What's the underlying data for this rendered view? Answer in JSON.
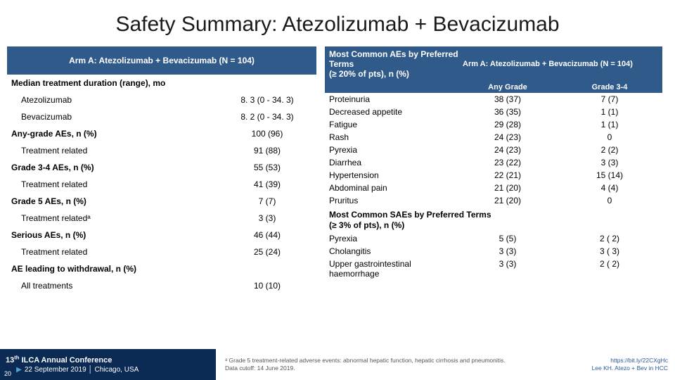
{
  "title": "Safety Summary: Atezolizumab + Bevacizumab",
  "leftTable": {
    "header": "Arm A: Atezolizumab + Bevacizumab  (N = 104)",
    "rows": [
      {
        "label": "Median treatment duration (range), mo",
        "val": "",
        "bold": true,
        "indent": false
      },
      {
        "label": "Atezolizumab",
        "val": "8. 3 (0 - 34. 3)",
        "bold": false,
        "indent": true
      },
      {
        "label": "Bevacizumab",
        "val": "8. 2 (0 - 34. 3)",
        "bold": false,
        "indent": true
      },
      {
        "label": "Any-grade AEs, n (%)",
        "val": "100 (96)",
        "bold": true,
        "indent": false
      },
      {
        "label": "Treatment related",
        "val": "91 (88)",
        "bold": false,
        "indent": true
      },
      {
        "label": "Grade 3-4 AEs, n (%)",
        "val": "55 (53)",
        "bold": true,
        "indent": false
      },
      {
        "label": "Treatment related",
        "val": "41 (39)",
        "bold": false,
        "indent": true
      },
      {
        "label": "Grade 5 AEs, n (%)",
        "val": "7 (7)",
        "bold": true,
        "indent": false
      },
      {
        "label": "Treatment relatedᵃ",
        "val": "3 (3)",
        "bold": false,
        "indent": true
      },
      {
        "label": "Serious AEs, n (%)",
        "val": "46 (44)",
        "bold": true,
        "indent": false
      },
      {
        "label": "Treatment related",
        "val": "25 (24)",
        "bold": false,
        "indent": true
      },
      {
        "label": "AE leading to withdrawal, n (%)",
        "val": "",
        "bold": true,
        "indent": false
      },
      {
        "label": "All treatments",
        "val": "10 (10)",
        "bold": false,
        "indent": true
      }
    ]
  },
  "rightTable": {
    "header1": "Most Common AEs by Preferred Terms\n(≥ 20% of pts), n (%)",
    "header2": "Arm A: Atezolizumab + Bevacizumab  (N = 104)",
    "sub1": "Any Grade",
    "sub2": "Grade 3-4",
    "rows1": [
      {
        "c1": "Proteinuria",
        "c2": "38 (37)",
        "c3": "7 (7)"
      },
      {
        "c1": "Decreased appetite",
        "c2": "36 (35)",
        "c3": "1 (1)"
      },
      {
        "c1": "Fatigue",
        "c2": "29 (28)",
        "c3": "1 (1)"
      },
      {
        "c1": "Rash",
        "c2": "24 (23)",
        "c3": "0"
      },
      {
        "c1": "Pyrexia",
        "c2": "24 (23)",
        "c3": "2 (2)"
      },
      {
        "c1": "Diarrhea",
        "c2": "23 (22)",
        "c3": "3 (3)"
      },
      {
        "c1": "Hypertension",
        "c2": "22 (21)",
        "c3": "15 (14)"
      },
      {
        "c1": "Abdominal pain",
        "c2": "21 (20)",
        "c3": "4 (4)"
      },
      {
        "c1": "Pruritus",
        "c2": "21 (20)",
        "c3": "0"
      }
    ],
    "section2Head": "Most Common SAEs by Preferred Terms\n(≥ 3% of pts), n (%)",
    "rows2": [
      {
        "c1": "Pyrexia",
        "c2": "5 (5)",
        "c3": "2 ( 2)"
      },
      {
        "c1": "Cholangitis",
        "c2": "3 (3)",
        "c3": "3 ( 3)"
      },
      {
        "c1": "Upper gastrointestinal haemorrhage",
        "c2": "3 (3)",
        "c3": "2 ( 2)"
      }
    ]
  },
  "footer": {
    "confLine1a": "13",
    "confLine1b": "th",
    "confLine1c": " ILCA Annual Conference",
    "confLine2": "22 September 2019 │ Chicago, USA",
    "pageNum": "20",
    "footnote1": "ᵃ Grade 5 treatment-related adverse events: abnormal hepatic function, hepatic cirrhosis and pneumonitis.",
    "footnote2": "Data cutoff: 14 June 2019.",
    "ref1": "https://bit.ly/22CXgHc",
    "ref2": "Lee KH. Atezo + Bev in HCC"
  },
  "colors": {
    "headerBg": "#305a8a",
    "footerBg": "#0b2b55"
  }
}
